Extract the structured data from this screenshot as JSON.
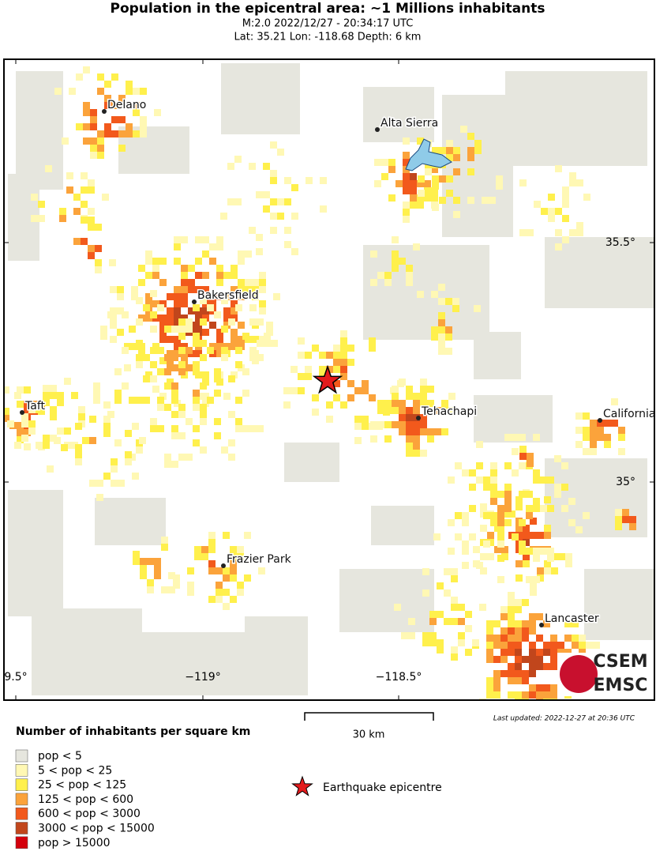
{
  "header": {
    "title": "Population in the epicentral area: ~1 Millions inhabitants",
    "line1": "M:2.0 2022/12/27 - 20:34:17 UTC",
    "line2": "Lat: 35.21 Lon: -118.68 Depth: 6 km"
  },
  "map": {
    "cities": [
      {
        "label": "Delano"
      },
      {
        "label": "Alta Sierra"
      },
      {
        "label": "Bakersfield"
      },
      {
        "label": "Taft"
      },
      {
        "label": "Tehachapi"
      },
      {
        "label": "California"
      },
      {
        "label": "Frazier Park"
      },
      {
        "label": "Lancaster"
      }
    ],
    "lon_labels": [
      "9.5°",
      "−119°",
      "−118.5°"
    ],
    "lat_labels": [
      "35.5°",
      "35°"
    ]
  },
  "scale_bar": {
    "label": "30 km"
  },
  "last_updated": "Last updated: 2022-12-27 at 20:36 UTC",
  "logo": [
    "CSEM",
    "EMSC"
  ],
  "legend": {
    "title": "Number of inhabitants per square km",
    "items": [
      {
        "label": "pop < 5",
        "color": "#e6e6de"
      },
      {
        "label": "5 < pop < 25",
        "color": "#fff8b4"
      },
      {
        "label": "25 < pop < 125",
        "color": "#fff04c"
      },
      {
        "label": "125 < pop < 600",
        "color": "#fba33b"
      },
      {
        "label": "600 < pop < 3000",
        "color": "#f2591c"
      },
      {
        "label": "3000 < pop < 15000",
        "color": "#c1461c"
      },
      {
        "label": "pop > 15000",
        "color": "#d4000c"
      }
    ],
    "epicentre": "Earthquake epicentre"
  }
}
